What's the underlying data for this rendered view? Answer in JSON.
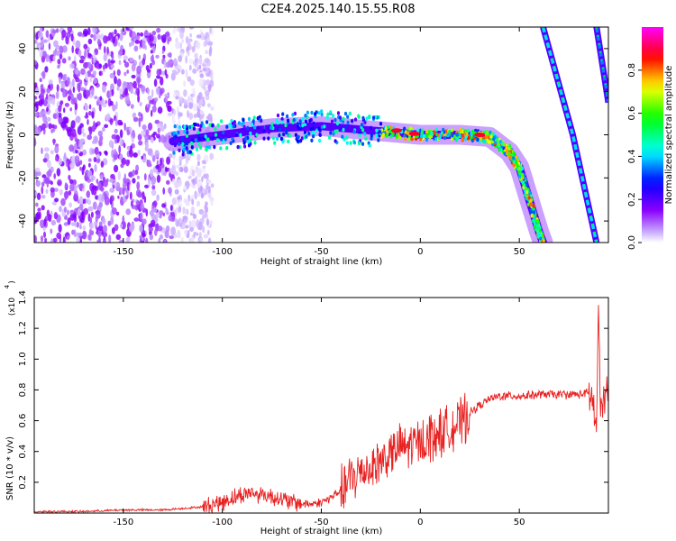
{
  "figure": {
    "title": "C2E4.2025.140.15.55.R08"
  },
  "chart_data": [
    {
      "type": "heatmap",
      "title": "",
      "xlabel": "Height of straight line (km)",
      "ylabel": "Frequency (Hz)",
      "xlim": [
        -195,
        95
      ],
      "ylim": [
        -50,
        50
      ],
      "x_ticks": [
        -150,
        -100,
        -50,
        0,
        50
      ],
      "y_ticks": [
        -40,
        -20,
        0,
        20,
        40
      ],
      "grid": false,
      "colorbar": {
        "label": "Normalized spectral amplitude",
        "range": [
          0,
          1
        ],
        "ticks": [
          0.0,
          0.2,
          0.4,
          0.6,
          0.8
        ],
        "colormap": "rainbow",
        "colors": [
          "#ffffff",
          "#8a00ff",
          "#0000ff",
          "#00ffff",
          "#00ff00",
          "#ffff00",
          "#ff0000",
          "#ff00ff"
        ]
      },
      "features": [
        {
          "name": "noise",
          "x_range": [
            -195,
            -120
          ],
          "f_range": [
            -50,
            50
          ],
          "amplitude": 0.05
        },
        {
          "name": "main trace",
          "points": [
            [
              -125,
              -3
            ],
            [
              -100,
              0
            ],
            [
              -75,
              3
            ],
            [
              -50,
              4
            ],
            [
              -25,
              2
            ],
            [
              0,
              0
            ],
            [
              20,
              0
            ],
            [
              35,
              -1
            ],
            [
              45,
              -8
            ],
            [
              50,
              -15
            ],
            [
              55,
              -30
            ],
            [
              60,
              -45
            ],
            [
              62,
              -50
            ]
          ],
          "amplitude": 0.8
        },
        {
          "name": "aliased trace 1",
          "points": [
            [
              62,
              50
            ],
            [
              77,
              0
            ],
            [
              89,
              -50
            ]
          ],
          "amplitude": 0.4
        },
        {
          "name": "aliased trace 2",
          "points": [
            [
              89,
              50
            ],
            [
              95,
              15
            ]
          ],
          "amplitude": 0.35
        }
      ]
    },
    {
      "type": "line",
      "title": "",
      "xlabel": "Height of straight line (km)",
      "ylabel": "SNR (10 * v/v)",
      "scale_label": "(x10",
      "scale_exponent": "4",
      "xlim": [
        -195,
        95
      ],
      "ylim": [
        0,
        1.4
      ],
      "x_ticks": [
        -150,
        -100,
        -50,
        0,
        50
      ],
      "y_ticks": [
        0.2,
        0.4,
        0.6,
        0.8,
        1.0,
        1.2,
        1.4
      ],
      "color": "#e82020",
      "grid": false,
      "series": [
        {
          "x": [
            -195,
            -170,
            -150,
            -130,
            -120,
            -110,
            -100,
            -95,
            -90,
            -85,
            -80,
            -75,
            -70,
            -65,
            -60,
            -55,
            -50,
            -45,
            -40,
            -35,
            -30,
            -25,
            -20,
            -15,
            -10,
            -5,
            0,
            5,
            10,
            15,
            20,
            25,
            30,
            35,
            40,
            50,
            60,
            70,
            80,
            84,
            87,
            89,
            90,
            91,
            93,
            95
          ],
          "y": [
            0.01,
            0.01,
            0.02,
            0.02,
            0.03,
            0.04,
            0.07,
            0.1,
            0.12,
            0.13,
            0.12,
            0.11,
            0.09,
            0.07,
            0.06,
            0.06,
            0.07,
            0.1,
            0.15,
            0.22,
            0.27,
            0.3,
            0.34,
            0.38,
            0.42,
            0.44,
            0.46,
            0.5,
            0.52,
            0.55,
            0.58,
            0.65,
            0.7,
            0.74,
            0.76,
            0.76,
            0.77,
            0.77,
            0.77,
            0.78,
            0.75,
            0.5,
            1.4,
            0.6,
            0.78,
            0.76
          ]
        }
      ]
    }
  ]
}
